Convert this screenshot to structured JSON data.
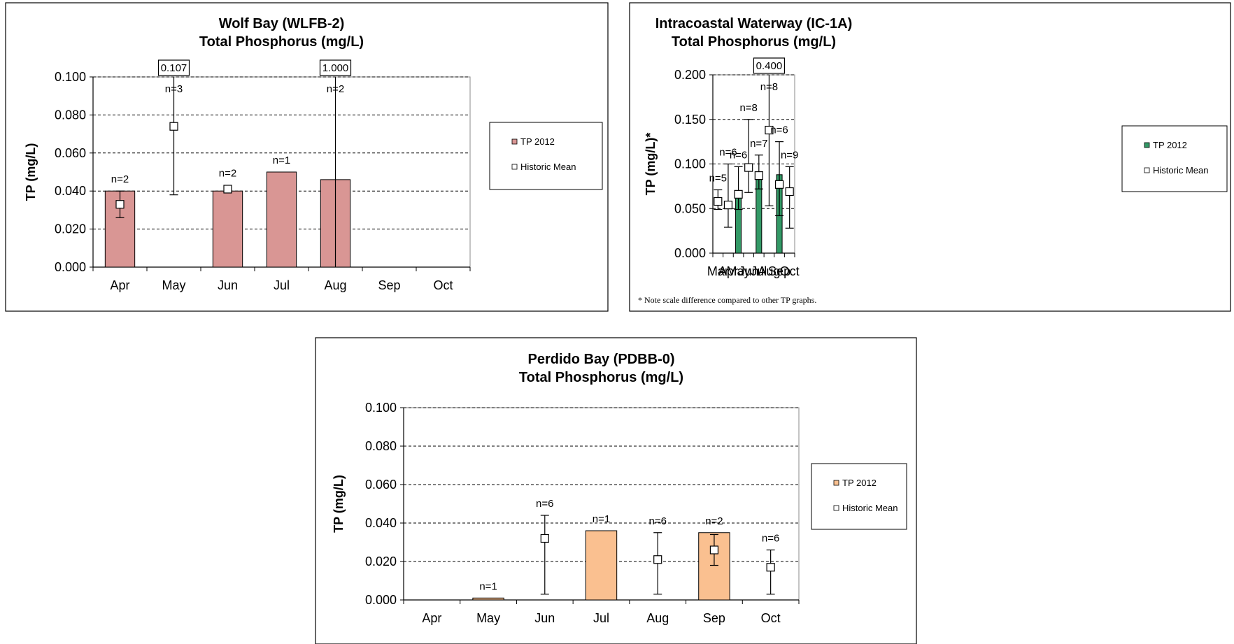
{
  "chart_data": [
    {
      "type": "bar",
      "title": "Wolf Bay (WLFB-2)",
      "subtitle": "Total Phosphorus (mg/L)",
      "ylabel": "TP (mg/L)",
      "categories": [
        "Apr",
        "May",
        "Jun",
        "Jul",
        "Aug",
        "Sep",
        "Oct"
      ],
      "ylim": [
        0,
        0.1
      ],
      "yticks": [
        "0.000",
        "0.020",
        "0.040",
        "0.060",
        "0.080",
        "0.100"
      ],
      "grid": true,
      "bar_color": "#d99694",
      "series": [
        {
          "name": "TP 2012",
          "values": [
            0.04,
            null,
            0.04,
            0.05,
            0.046,
            null,
            null
          ]
        },
        {
          "name": "Historic Mean",
          "values": [
            0.033,
            0.074,
            0.041,
            null,
            null,
            null,
            null
          ],
          "error_low": [
            0.026,
            0.038,
            null,
            null,
            null,
            null,
            null
          ],
          "error_high": [
            0.04,
            0.107,
            null,
            null,
            1.0,
            null,
            null
          ]
        }
      ],
      "n_labels": [
        "n=2",
        "n=3",
        "n=2",
        "n=1",
        "n=2",
        "",
        ""
      ],
      "callouts": [
        {
          "category": "May",
          "text": "0.107"
        },
        {
          "category": "Aug",
          "text": "1.000"
        }
      ],
      "legend": "right",
      "note": ""
    },
    {
      "type": "bar",
      "title": "Intracoastal Waterway (IC-1A)",
      "subtitle": "Total Phosphorus (mg/L)",
      "ylabel": "TP (mg/L)*",
      "categories": [
        "Mar",
        "Apr",
        "May",
        "Jun",
        "Jul",
        "Aug",
        "Sep",
        "Oct"
      ],
      "ylim": [
        0,
        0.2
      ],
      "yticks": [
        "0.000",
        "0.050",
        "0.100",
        "0.150",
        "0.200"
      ],
      "grid": true,
      "bar_color": "#339966",
      "series": [
        {
          "name": "TP 2012",
          "values": [
            null,
            null,
            0.067,
            null,
            0.087,
            null,
            0.088,
            null
          ]
        },
        {
          "name": "Historic Mean",
          "values": [
            0.058,
            0.054,
            0.066,
            0.096,
            0.087,
            0.138,
            0.077,
            0.069
          ],
          "error_low": [
            0.049,
            0.029,
            0.049,
            0.068,
            0.072,
            0.053,
            0.042,
            0.028
          ],
          "error_high": [
            0.071,
            0.1,
            0.097,
            0.15,
            0.11,
            0.4,
            0.125,
            0.097
          ]
        }
      ],
      "n_labels": [
        "n=5",
        "n=6",
        "n=6",
        "n=8",
        "n=7",
        "n=8",
        "n=6",
        "n=9"
      ],
      "callouts": [
        {
          "category": "Aug",
          "text": "0.400"
        }
      ],
      "legend": "right",
      "note": "* Note scale difference compared to other TP graphs."
    },
    {
      "type": "bar",
      "title": "Perdido Bay (PDBB-0)",
      "subtitle": "Total Phosphorus (mg/L)",
      "ylabel": "TP (mg/L)",
      "categories": [
        "Apr",
        "May",
        "Jun",
        "Jul",
        "Aug",
        "Sep",
        "Oct"
      ],
      "ylim": [
        0,
        0.1
      ],
      "yticks": [
        "0.000",
        "0.020",
        "0.040",
        "0.060",
        "0.080",
        "0.100"
      ],
      "grid": true,
      "bar_color": "#fac090",
      "series": [
        {
          "name": "TP 2012",
          "values": [
            null,
            0.001,
            null,
            0.036,
            null,
            0.035,
            null
          ]
        },
        {
          "name": "Historic Mean",
          "values": [
            null,
            null,
            0.032,
            null,
            0.021,
            0.026,
            0.017
          ],
          "error_low": [
            null,
            null,
            0.003,
            null,
            0.003,
            0.018,
            0.003
          ],
          "error_high": [
            null,
            null,
            0.044,
            null,
            0.035,
            0.034,
            0.026
          ]
        }
      ],
      "n_labels": [
        "",
        "n=1",
        "n=6",
        "n=1",
        "n=6",
        "n=2",
        "n=6"
      ],
      "callouts": [],
      "legend": "right",
      "note": ""
    }
  ]
}
